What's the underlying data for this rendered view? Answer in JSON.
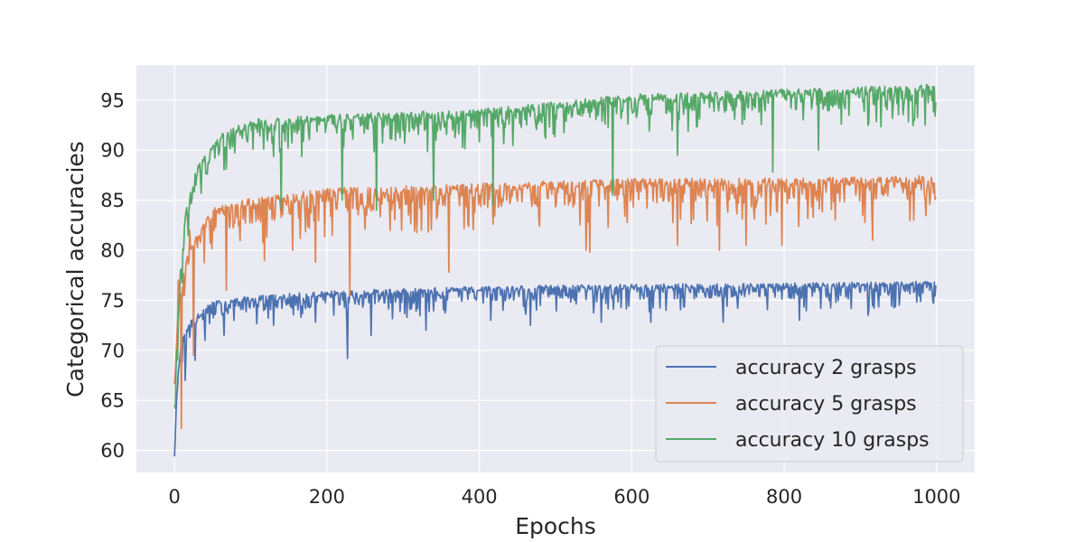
{
  "chart_data": {
    "type": "line",
    "title": "",
    "xlabel": "Epochs",
    "ylabel": "Categorical accuracies",
    "xlim": [
      -50,
      1050
    ],
    "ylim": [
      57.8,
      98.5
    ],
    "xticks": [
      0,
      200,
      400,
      600,
      800,
      1000
    ],
    "yticks": [
      60,
      65,
      70,
      75,
      80,
      85,
      90,
      95
    ],
    "grid": true,
    "background": "#eaeaf2",
    "legend_position": "lower-right",
    "n_points": 1000,
    "series": [
      {
        "name": "accuracy 2 grasps",
        "color": "#4c72b0",
        "anchors": [
          [
            0,
            59.5
          ],
          [
            2,
            64
          ],
          [
            5,
            68
          ],
          [
            10,
            71
          ],
          [
            20,
            72.5
          ],
          [
            50,
            74.5
          ],
          [
            100,
            75
          ],
          [
            200,
            75.5
          ],
          [
            400,
            76
          ],
          [
            600,
            76.2
          ],
          [
            800,
            76.3
          ],
          [
            1000,
            76.5
          ]
        ],
        "noise": 1.6,
        "dips": [
          [
            9,
            71
          ],
          [
            14,
            67
          ],
          [
            27,
            69
          ],
          [
            40,
            71
          ],
          [
            65,
            71.5
          ],
          [
            130,
            72.5
          ],
          [
            185,
            72.8
          ],
          [
            227,
            69.2
          ],
          [
            258,
            71.5
          ],
          [
            330,
            72
          ],
          [
            415,
            73
          ],
          [
            467,
            72.5
          ],
          [
            560,
            72.8
          ],
          [
            625,
            72.8
          ],
          [
            720,
            72.8
          ],
          [
            820,
            73
          ],
          [
            910,
            73.5
          ],
          [
            995,
            75
          ]
        ]
      },
      {
        "name": "accuracy 5 grasps",
        "color": "#dd8452",
        "anchors": [
          [
            0,
            66.5
          ],
          [
            3,
            72
          ],
          [
            8,
            76
          ],
          [
            20,
            80
          ],
          [
            50,
            83.5
          ],
          [
            100,
            84.5
          ],
          [
            200,
            85.5
          ],
          [
            400,
            86
          ],
          [
            600,
            86.5
          ],
          [
            800,
            86.5
          ],
          [
            1000,
            86.8
          ]
        ],
        "noise": 2.6,
        "dips": [
          [
            3,
            71
          ],
          [
            5,
            77
          ],
          [
            9,
            62.2
          ],
          [
            13,
            75.5
          ],
          [
            20,
            82
          ],
          [
            25,
            69.5
          ],
          [
            68,
            76
          ],
          [
            118,
            79
          ],
          [
            155,
            80
          ],
          [
            185,
            78.8
          ],
          [
            230,
            75.5
          ],
          [
            360,
            77.8
          ],
          [
            540,
            80
          ],
          [
            545,
            79.8
          ],
          [
            660,
            80.5
          ],
          [
            715,
            80
          ],
          [
            750,
            80.5
          ],
          [
            797,
            80.5
          ],
          [
            916,
            81
          ],
          [
            970,
            83
          ]
        ]
      },
      {
        "name": "accuracy 10 grasps",
        "color": "#55a868",
        "anchors": [
          [
            0,
            64.5
          ],
          [
            3,
            70
          ],
          [
            8,
            78
          ],
          [
            15,
            84
          ],
          [
            30,
            88
          ],
          [
            60,
            91
          ],
          [
            100,
            92.5
          ],
          [
            200,
            93
          ],
          [
            400,
            93.5
          ],
          [
            600,
            95
          ],
          [
            800,
            95.5
          ],
          [
            1000,
            96
          ]
        ],
        "noise": 2.2,
        "dips": [
          [
            1,
            64.2
          ],
          [
            4,
            69
          ],
          [
            12,
            80
          ],
          [
            20,
            85
          ],
          [
            140,
            84
          ],
          [
            220,
            85
          ],
          [
            265,
            84
          ],
          [
            340,
            85
          ],
          [
            418,
            84.5
          ],
          [
            575,
            85.5
          ],
          [
            660,
            89.5
          ],
          [
            785,
            87.8
          ],
          [
            845,
            90
          ],
          [
            985,
            92.5
          ]
        ]
      }
    ]
  }
}
